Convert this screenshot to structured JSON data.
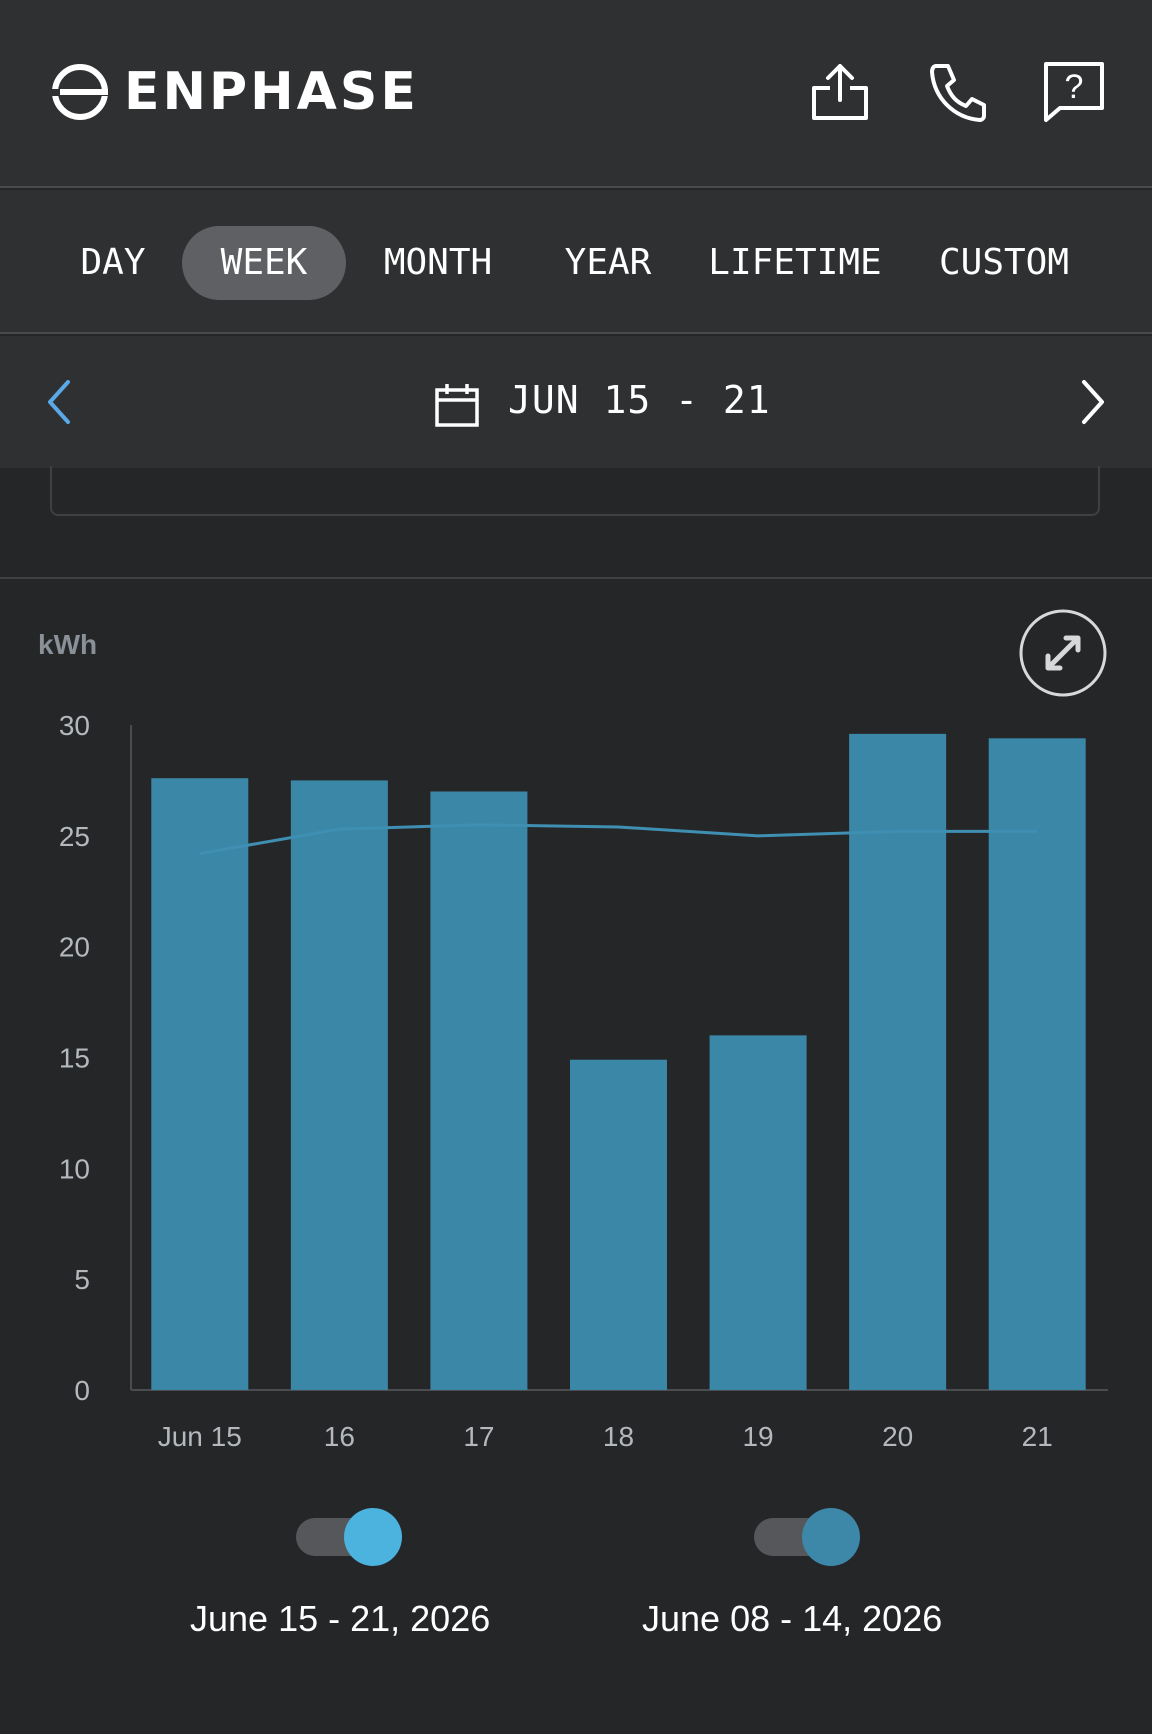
{
  "header": {
    "brand": "ENPHASE",
    "icons": [
      "share-icon",
      "phone-icon",
      "help-chat-icon"
    ]
  },
  "tabs": [
    {
      "label": "DAY",
      "active": false
    },
    {
      "label": "WEEK",
      "active": true
    },
    {
      "label": "MONTH",
      "active": false
    },
    {
      "label": "YEAR",
      "active": false
    },
    {
      "label": "LIFETIME",
      "active": false
    },
    {
      "label": "CUSTOM",
      "active": false
    }
  ],
  "date_nav": {
    "range": "JUN 15 - 21"
  },
  "chart": {
    "unit_label": "kWh"
  },
  "legend": {
    "current": "June 15 - 21, 2026",
    "previous": "June 08 - 14, 2026"
  },
  "colors": {
    "bar": "#3b87a7",
    "line": "#3f8fb3",
    "toggle_current": "#4cb2de",
    "toggle_previous": "#3d87a8",
    "accent_arrow": "#5aa9e6"
  },
  "chart_data": {
    "type": "bar",
    "ylabel": "kWh",
    "ylim": [
      0,
      30
    ],
    "yticks": [
      0,
      5,
      10,
      15,
      20,
      25,
      30
    ],
    "categories": [
      "Jun 15",
      "16",
      "17",
      "18",
      "19",
      "20",
      "21"
    ],
    "series": [
      {
        "name": "June 15 - 21, 2026",
        "kind": "bar",
        "values": [
          27.6,
          27.5,
          27.0,
          14.9,
          16.0,
          29.6,
          29.4
        ]
      },
      {
        "name": "June 08 - 14, 2026",
        "kind": "line",
        "values": [
          24.2,
          25.3,
          25.5,
          25.4,
          25.0,
          25.2,
          25.2
        ]
      }
    ],
    "grid": false,
    "legend": "bottom"
  }
}
